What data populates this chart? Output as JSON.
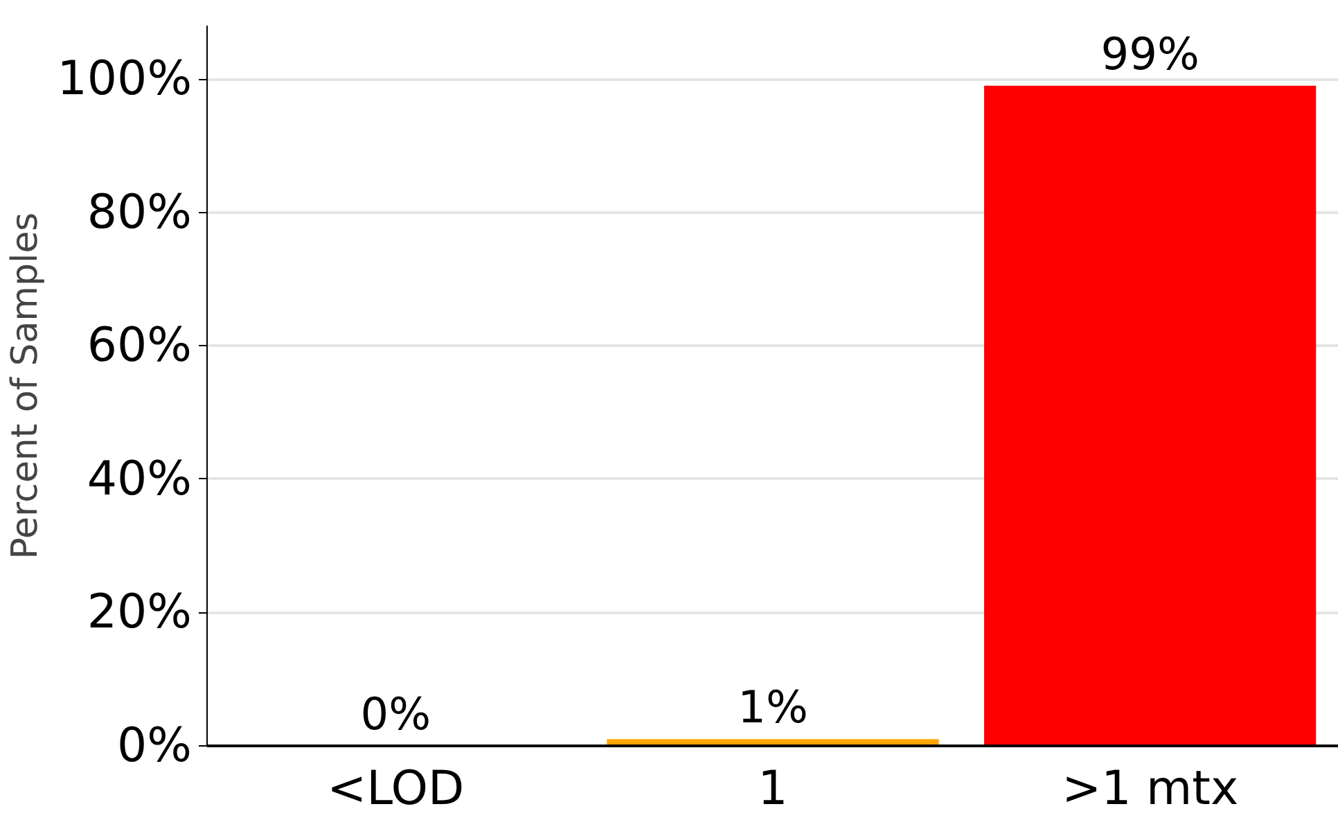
{
  "chart_data": {
    "type": "bar",
    "ylabel": "Percent of Samples",
    "categories": [
      "<LOD",
      "1",
      ">1 mtx"
    ],
    "values": [
      0,
      1,
      99
    ],
    "colors": [
      "#008000",
      "#ffa500",
      "#ff0000"
    ],
    "value_labels": [
      "0%",
      "1%",
      "99%"
    ],
    "ylim": [
      0,
      108
    ],
    "yticks": [
      {
        "value": 0,
        "label": "0%"
      },
      {
        "value": 20,
        "label": "20%"
      },
      {
        "value": 40,
        "label": "40%"
      },
      {
        "value": 60,
        "label": "60%"
      },
      {
        "value": 80,
        "label": "80%"
      },
      {
        "value": 100,
        "label": "100%"
      }
    ],
    "grid": "y",
    "legend": false
  }
}
